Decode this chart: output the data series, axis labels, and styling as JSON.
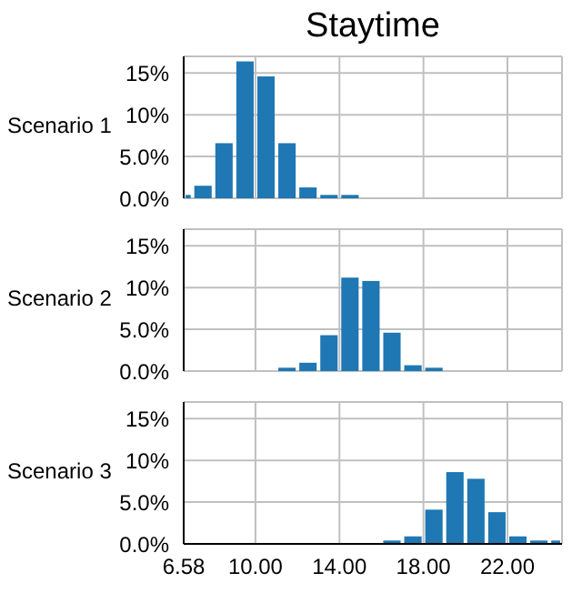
{
  "chart_data": [
    {
      "type": "histogram",
      "title": "Staytime",
      "ylabel": "Scenario 1",
      "bins": [
        6.58,
        7,
        8,
        9,
        10,
        11,
        12,
        13,
        14,
        15
      ],
      "values": [
        0.4,
        1.5,
        6.6,
        16.4,
        14.6,
        6.6,
        1.3,
        0.4,
        0.4
      ],
      "color": "#1f77b4",
      "xlim": [
        6.58,
        24.6
      ],
      "xticks": [
        10,
        14,
        18,
        22
      ],
      "ylim": [
        0,
        17
      ],
      "yticks": [
        {
          "value": 0,
          "label": "0.0%"
        },
        {
          "value": 5,
          "label": "5.0%"
        },
        {
          "value": 10,
          "label": "10%"
        },
        {
          "value": 15,
          "label": "15%"
        }
      ],
      "grid": true,
      "tick_labels": "y"
    },
    {
      "type": "histogram",
      "ylabel": "Scenario 2",
      "bins": [
        11,
        12,
        13,
        14,
        15,
        16,
        17,
        18,
        19
      ],
      "values": [
        0.4,
        1.0,
        4.3,
        11.2,
        10.8,
        4.6,
        0.7,
        0.4
      ],
      "color": "#1f77b4",
      "xlim": [
        6.58,
        24.6
      ],
      "xticks": [
        10,
        14,
        18,
        22
      ],
      "ylim": [
        0,
        17
      ],
      "yticks": [
        {
          "value": 0,
          "label": "0.0%"
        },
        {
          "value": 5,
          "label": "5.0%"
        },
        {
          "value": 10,
          "label": "10%"
        },
        {
          "value": 15,
          "label": "15%"
        }
      ],
      "grid": true,
      "tick_labels": "y"
    },
    {
      "type": "histogram",
      "ylabel": "Scenario 3",
      "bins": [
        16,
        17,
        18,
        19,
        20,
        21,
        22,
        23,
        24,
        24.6
      ],
      "values": [
        0.4,
        0.9,
        4.1,
        8.6,
        7.8,
        3.8,
        0.9,
        0.4,
        0.4
      ],
      "color": "#1f77b4",
      "xlim": [
        6.58,
        24.6
      ],
      "xticks": [
        6.58,
        {
          "value": 10,
          "label": "10.00"
        },
        {
          "value": 14,
          "label": "14.00"
        },
        {
          "value": 18,
          "label": "18.00"
        },
        {
          "value": 22,
          "label": "22.00"
        }
      ],
      "ylim": [
        0,
        17
      ],
      "yticks": [
        {
          "value": 0,
          "label": "0.0%"
        },
        {
          "value": 5,
          "label": "5.0%"
        },
        {
          "value": 10,
          "label": "10%"
        },
        {
          "value": 15,
          "label": "15%"
        }
      ],
      "grid": true
    }
  ]
}
